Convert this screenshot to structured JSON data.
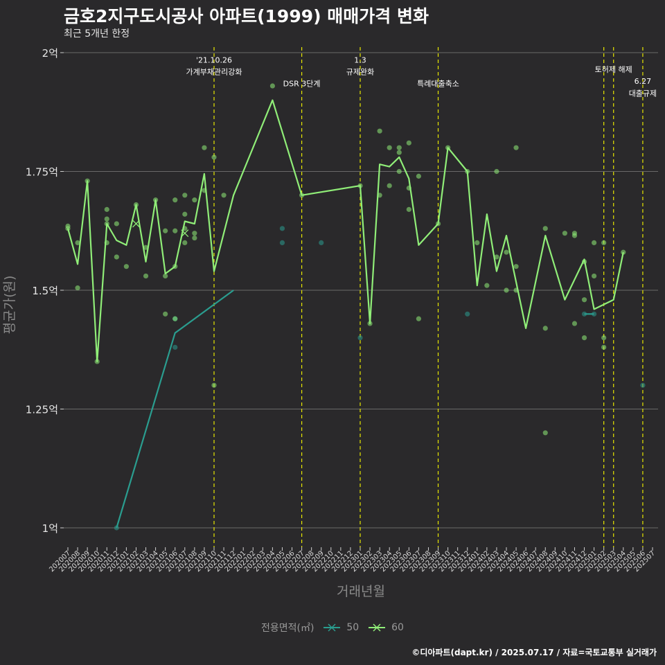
{
  "header": {
    "title": "금호2지구도시공사 아파트(1999) 매매가격 변화",
    "subtitle": "최근 5개년 한정"
  },
  "footer": {
    "caption": "©디아파트(dapt.kr) / 2025.07.17 / 자료=국토교통부 실거래가"
  },
  "legend": {
    "title": "전용면적(㎡)",
    "items": [
      {
        "label": "50",
        "color": "#2a9d8f"
      },
      {
        "label": "60",
        "color": "#90ee78"
      }
    ]
  },
  "chart_data": {
    "type": "line",
    "xlabel": "거래년월",
    "ylabel": "평균가(원)",
    "ylim": [
      0.9,
      2.0
    ],
    "yticks": [
      {
        "v": 1.0,
        "label": "1억"
      },
      {
        "v": 1.25,
        "label": "1.25억"
      },
      {
        "v": 1.5,
        "label": "1.5억"
      },
      {
        "v": 1.75,
        "label": "1.75억"
      },
      {
        "v": 2.0,
        "label": "2억"
      }
    ],
    "categories": [
      "202007",
      "202008",
      "202009",
      "202010",
      "202011",
      "202012",
      "202101",
      "202102",
      "202103",
      "202104",
      "202105",
      "202106",
      "202107",
      "202108",
      "202109",
      "202110",
      "202111",
      "202112",
      "202201",
      "202202",
      "202203",
      "202204",
      "202205",
      "202206",
      "202207",
      "202208",
      "202209",
      "202210",
      "202211",
      "202212",
      "202301",
      "202302",
      "202303",
      "202304",
      "202305",
      "202306",
      "202307",
      "202308",
      "202309",
      "202310",
      "202311",
      "202312",
      "202401",
      "202402",
      "202403",
      "202404",
      "202405",
      "202406",
      "202407",
      "202408",
      "202409",
      "202410",
      "202411",
      "202412",
      "202501",
      "202502",
      "202503",
      "202504",
      "202505",
      "202506",
      "202507"
    ],
    "series": [
      {
        "name": "50",
        "color": "#2a9d8f",
        "line": [
          [
            "202012",
            1.0
          ],
          [
            "202106",
            1.41
          ],
          [
            "202112",
            1.5
          ]
        ],
        "line2": [
          [
            "202412",
            1.45
          ],
          [
            "202501",
            1.45
          ]
        ],
        "points": [
          [
            "202012",
            1.0
          ],
          [
            "202106",
            1.38
          ],
          [
            "202106",
            1.44
          ],
          [
            "202205",
            1.63
          ],
          [
            "202205",
            1.6
          ],
          [
            "202209",
            1.6
          ],
          [
            "202301",
            1.4
          ],
          [
            "202312",
            1.45
          ],
          [
            "202412",
            1.45
          ],
          [
            "202501",
            1.45
          ],
          [
            "202506",
            1.3
          ]
        ]
      },
      {
        "name": "60",
        "color": "#90ee78",
        "line": [
          [
            "202007",
            1.63
          ],
          [
            "202008",
            1.555
          ],
          [
            "202009",
            1.73
          ],
          [
            "202010",
            1.35
          ],
          [
            "202011",
            1.64
          ],
          [
            "202012",
            1.605
          ],
          [
            "202101",
            1.595
          ],
          [
            "202102",
            1.68
          ],
          [
            "202103",
            1.56
          ],
          [
            "202104",
            1.69
          ],
          [
            "202105",
            1.535
          ],
          [
            "202106",
            1.55
          ],
          [
            "202107",
            1.645
          ],
          [
            "202108",
            1.64
          ],
          [
            "202109",
            1.745
          ],
          [
            "202110",
            1.54
          ],
          [
            "202112",
            1.7
          ],
          [
            "202204",
            1.9
          ],
          [
            "202207",
            1.7
          ],
          [
            "202301",
            1.72
          ],
          [
            "202302",
            1.43
          ],
          [
            "202303",
            1.765
          ],
          [
            "202304",
            1.76
          ],
          [
            "202305",
            1.78
          ],
          [
            "202306",
            1.735
          ],
          [
            "202307",
            1.595
          ],
          [
            "202309",
            1.64
          ],
          [
            "202310",
            1.8
          ],
          [
            "202312",
            1.75
          ],
          [
            "202401",
            1.51
          ],
          [
            "202402",
            1.66
          ],
          [
            "202403",
            1.54
          ],
          [
            "202404",
            1.615
          ],
          [
            "202406",
            1.42
          ],
          [
            "202408",
            1.615
          ],
          [
            "202410",
            1.48
          ],
          [
            "202412",
            1.565
          ],
          [
            "202501",
            1.46
          ],
          [
            "202503",
            1.48
          ],
          [
            "202504",
            1.58
          ]
        ],
        "points": [
          [
            "202007",
            1.635
          ],
          [
            "202007",
            1.63
          ],
          [
            "202008",
            1.6
          ],
          [
            "202008",
            1.505
          ],
          [
            "202009",
            1.73
          ],
          [
            "202010",
            1.35
          ],
          [
            "202011",
            1.67
          ],
          [
            "202011",
            1.65
          ],
          [
            "202011",
            1.64
          ],
          [
            "202011",
            1.6
          ],
          [
            "202012",
            1.64
          ],
          [
            "202012",
            1.57
          ],
          [
            "202101",
            1.55
          ],
          [
            "202102",
            1.68
          ],
          [
            "202103",
            1.59
          ],
          [
            "202103",
            1.53
          ],
          [
            "202104",
            1.69
          ],
          [
            "202105",
            1.625
          ],
          [
            "202105",
            1.53
          ],
          [
            "202105",
            1.45
          ],
          [
            "202106",
            1.625
          ],
          [
            "202106",
            1.69
          ],
          [
            "202106",
            1.55
          ],
          [
            "202106",
            1.44
          ],
          [
            "202107",
            1.7
          ],
          [
            "202107",
            1.66
          ],
          [
            "202107",
            1.63
          ],
          [
            "202107",
            1.6
          ],
          [
            "202108",
            1.69
          ],
          [
            "202108",
            1.62
          ],
          [
            "202108",
            1.61
          ],
          [
            "202109",
            1.8
          ],
          [
            "202109",
            1.71
          ],
          [
            "202110",
            1.78
          ],
          [
            "202110",
            1.3
          ],
          [
            "202111",
            1.7
          ],
          [
            "202204",
            1.93
          ],
          [
            "202207",
            1.7
          ],
          [
            "202301",
            1.72
          ],
          [
            "202302",
            1.43
          ],
          [
            "202303",
            1.835
          ],
          [
            "202303",
            1.7
          ],
          [
            "202304",
            1.8
          ],
          [
            "202304",
            1.72
          ],
          [
            "202305",
            1.8
          ],
          [
            "202305",
            1.79
          ],
          [
            "202305",
            1.75
          ],
          [
            "202306",
            1.81
          ],
          [
            "202306",
            1.715
          ],
          [
            "202306",
            1.67
          ],
          [
            "202307",
            1.74
          ],
          [
            "202307",
            1.44
          ],
          [
            "202309",
            1.64
          ],
          [
            "202310",
            1.8
          ],
          [
            "202312",
            1.75
          ],
          [
            "202401",
            1.6
          ],
          [
            "202402",
            1.51
          ],
          [
            "202403",
            1.75
          ],
          [
            "202403",
            1.57
          ],
          [
            "202404",
            1.58
          ],
          [
            "202404",
            1.5
          ],
          [
            "202405",
            1.8
          ],
          [
            "202405",
            1.55
          ],
          [
            "202405",
            1.5
          ],
          [
            "202408",
            1.63
          ],
          [
            "202408",
            1.42
          ],
          [
            "202408",
            1.2
          ],
          [
            "202410",
            1.62
          ],
          [
            "202411",
            1.62
          ],
          [
            "202411",
            1.615
          ],
          [
            "202411",
            1.43
          ],
          [
            "202412",
            1.56
          ],
          [
            "202412",
            1.48
          ],
          [
            "202412",
            1.4
          ],
          [
            "202501",
            1.6
          ],
          [
            "202501",
            1.53
          ],
          [
            "202502",
            1.6
          ],
          [
            "202502",
            1.4
          ],
          [
            "202502",
            1.38
          ],
          [
            "202504",
            1.58
          ]
        ],
        "crosses": [
          [
            "202102",
            1.64
          ],
          [
            "202107",
            1.62
          ]
        ]
      }
    ],
    "vlines": [
      "202110",
      "202207",
      "202301",
      "202309",
      "202502",
      "202503",
      "202506"
    ],
    "annotations": [
      {
        "x": "202110",
        "y": 1.985,
        "text": "'21.10.26"
      },
      {
        "x": "202110",
        "y": 1.96,
        "text": "가계부채관리강화"
      },
      {
        "x": "202207",
        "y": 1.935,
        "text": "DSR 3단계"
      },
      {
        "x": "202301",
        "y": 1.985,
        "text": "1.3"
      },
      {
        "x": "202301",
        "y": 1.96,
        "text": "규제완화"
      },
      {
        "x": "202309",
        "y": 1.935,
        "text": "특례대출축소"
      },
      {
        "x": "202503",
        "y": 1.965,
        "text": "토허제 해제"
      },
      {
        "x": "202506",
        "y": 1.94,
        "text": "6.27"
      },
      {
        "x": "202506",
        "y": 1.915,
        "text": "대출규제"
      }
    ]
  }
}
